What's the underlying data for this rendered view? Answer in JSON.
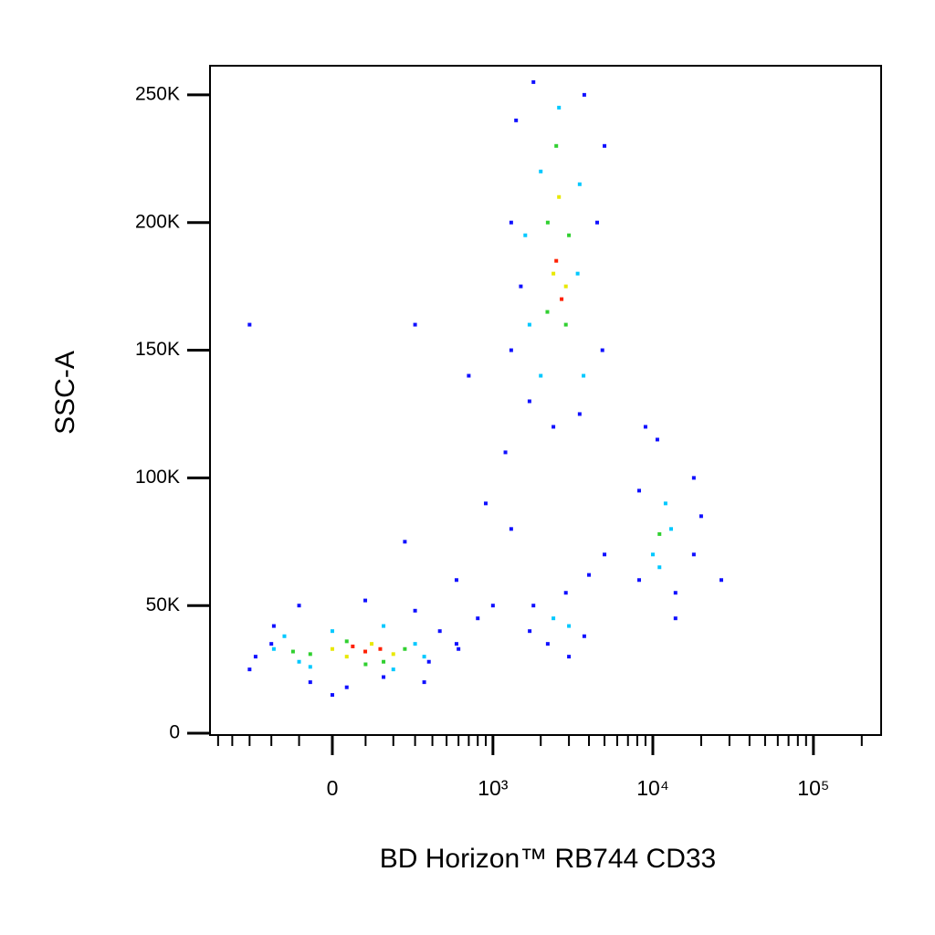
{
  "chart_data": {
    "type": "scatter",
    "x_label": "BD Horizon™ RB744 CD33",
    "y_label": "SSC-A",
    "xscale": "biexponential",
    "xlim": [
      -566,
      264000
    ],
    "ylim": [
      -700,
      261400
    ],
    "xticks": [
      0,
      {
        "value": 1000,
        "label": "10³"
      },
      {
        "value": 10000,
        "label": "10⁴"
      },
      {
        "value": 100000,
        "label": "10⁵"
      }
    ],
    "xminorticks": [
      -500,
      -400,
      -300,
      -200,
      -100,
      100,
      200,
      300,
      400,
      500,
      600,
      700,
      800,
      900,
      2000,
      3000,
      4000,
      5000,
      6000,
      7000,
      8000,
      9000,
      20000,
      30000,
      40000,
      50000,
      60000,
      70000,
      80000,
      90000,
      200000
    ],
    "yticks": [
      0,
      {
        "value": 50000,
        "label": "50K"
      },
      {
        "value": 100000,
        "label": "100K"
      },
      {
        "value": 150000,
        "label": "150K"
      },
      {
        "value": 200000,
        "label": "200K"
      },
      {
        "value": 250000,
        "label": "250K"
      }
    ],
    "series": [
      {
        "color": "#1010ff",
        "x": [
          -270,
          -190,
          -300,
          -65,
          42,
          162,
          378,
          450,
          300,
          99,
          -100,
          -200,
          582,
          350,
          0,
          1305,
          1305,
          1400,
          1700,
          1800,
          3740,
          4500,
          4850,
          3500,
          2400,
          1500,
          5000,
          1200,
          1705,
          2212,
          3740,
          2870,
          4000,
          1800,
          3000,
          8220,
          8220,
          13840,
          18000,
          18000,
          10670,
          26700,
          13840,
          9000,
          20000,
          582,
          900,
          1000,
          700,
          300,
          -300,
          1305,
          5000,
          600,
          800,
          250
        ],
        "values": [
          30000,
          42000,
          25000,
          20000,
          18000,
          22000,
          28000,
          40000,
          48000,
          52000,
          50000,
          35000,
          35000,
          20000,
          15000,
          150000,
          200000,
          240000,
          130000,
          255000,
          250000,
          200000,
          150000,
          125000,
          120000,
          175000,
          230000,
          110000,
          40000,
          35000,
          38000,
          55000,
          62000,
          50000,
          30000,
          60000,
          95000,
          55000,
          70000,
          100000,
          115000,
          60000,
          45000,
          120000,
          85000,
          60000,
          90000,
          50000,
          140000,
          160000,
          160000,
          80000,
          70000,
          33000,
          45000,
          75000
        ]
      },
      {
        "color": "#00c8ff",
        "x": [
          -190,
          -100,
          0,
          162,
          300,
          350,
          -65,
          200,
          -150,
          1700,
          2000,
          2600,
          3400,
          3700,
          2000,
          3500,
          1600,
          2400,
          3000,
          10000,
          12000,
          11000,
          13000
        ],
        "values": [
          33000,
          28000,
          40000,
          42000,
          35000,
          30000,
          26000,
          25000,
          38000,
          160000,
          220000,
          245000,
          180000,
          140000,
          140000,
          215000,
          195000,
          45000,
          42000,
          70000,
          90000,
          65000,
          80000
        ]
      },
      {
        "color": "#30d030",
        "x": [
          -65,
          42,
          162,
          250,
          -120,
          100,
          2212,
          2870,
          2500,
          3000,
          2200,
          11000
        ],
        "values": [
          31000,
          36000,
          28000,
          33000,
          32000,
          27000,
          200000,
          160000,
          230000,
          195000,
          165000,
          78000
        ]
      },
      {
        "color": "#e8e800",
        "x": [
          42,
          120,
          0,
          200,
          2600,
          2400,
          2870
        ],
        "values": [
          30000,
          35000,
          33000,
          31000,
          210000,
          180000,
          175000
        ]
      },
      {
        "color": "#ff2000",
        "x": [
          99,
          150,
          60,
          2500,
          2700
        ],
        "values": [
          32000,
          33000,
          34000,
          185000,
          170000
        ]
      }
    ]
  }
}
